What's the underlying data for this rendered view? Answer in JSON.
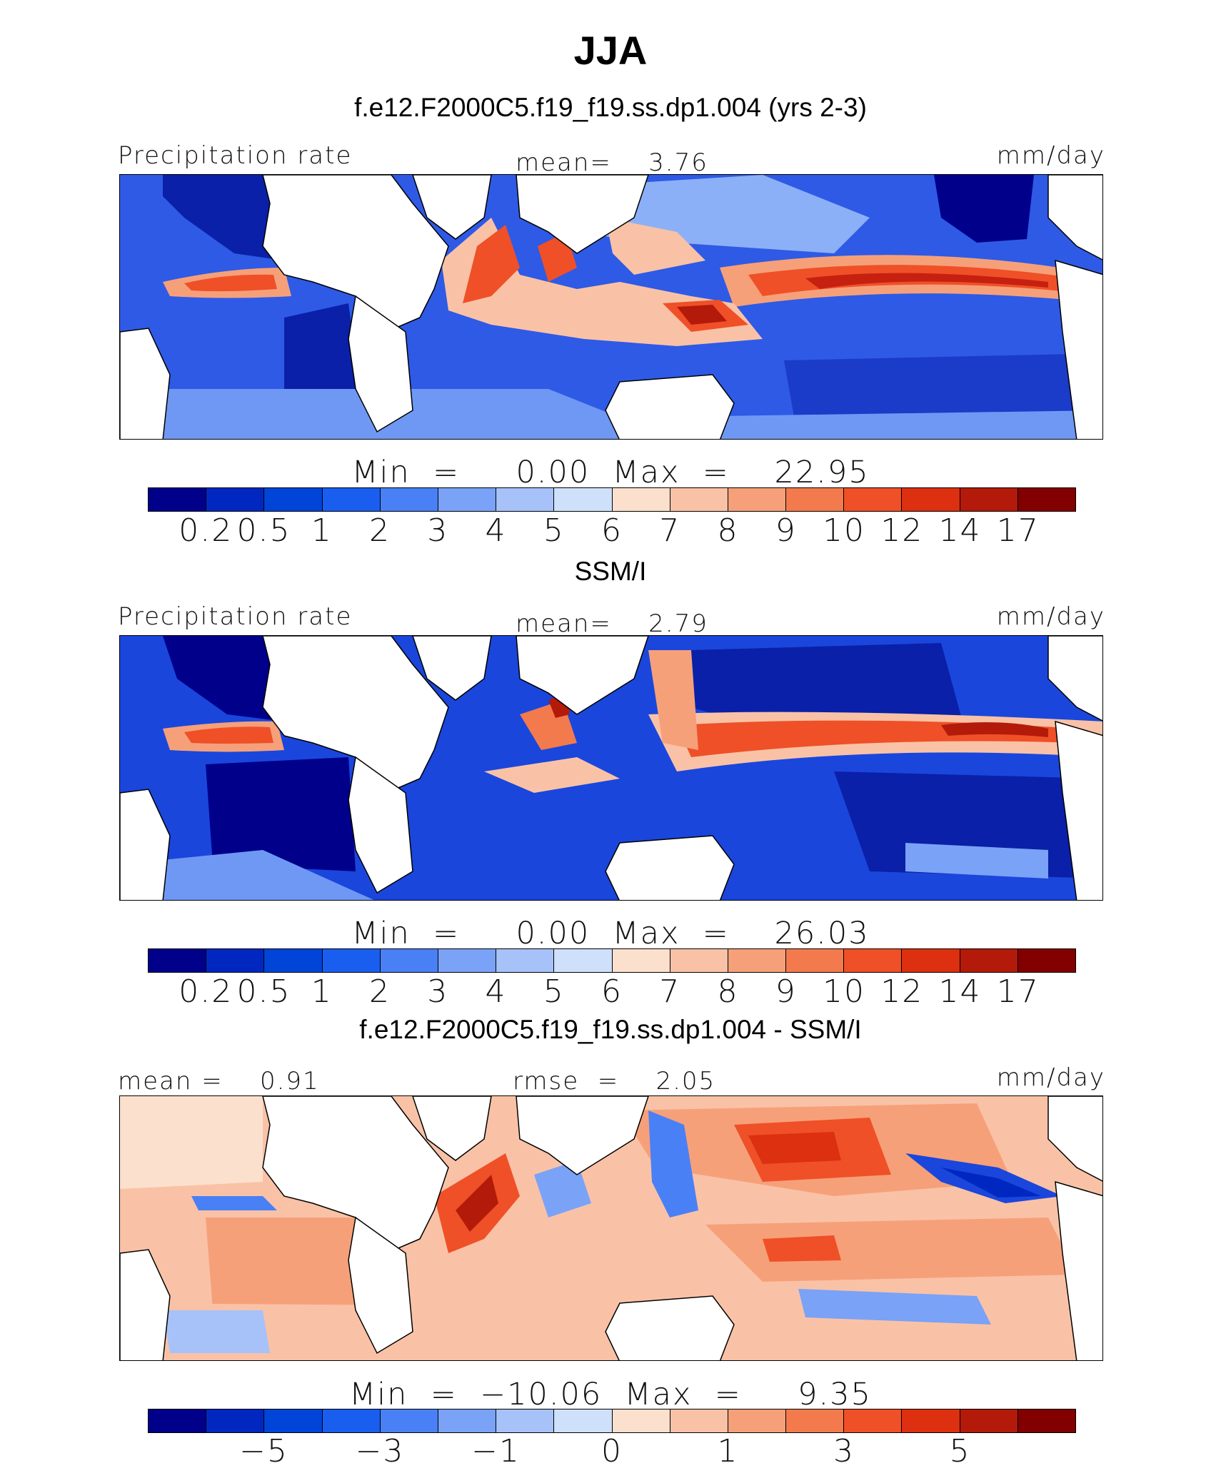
{
  "title": "JJA",
  "panels": [
    {
      "id": "model",
      "subtitle": "f.e12.F2000C5.f19_f19.ss.dp1.004 (yrs 2-3)",
      "left_label": "Precipitation rate",
      "center_label": "mean=    3.76",
      "right_label": "mm/day",
      "minmax": "Min  =     0.00  Max  =    22.95",
      "colorbar": {
        "colors": [
          "#00008b",
          "#0028c0",
          "#0044d8",
          "#1a5ef0",
          "#4a80f5",
          "#7aa2f7",
          "#a6c2f9",
          "#cfe0fb",
          "#fbe0cd",
          "#f9c2a6",
          "#f6a07a",
          "#f37a4d",
          "#ef5027",
          "#dc3010",
          "#b31a0a",
          "#820000"
        ],
        "tick_labels": [
          "0.2",
          "0.5",
          "1",
          "2",
          "3",
          "4",
          "5",
          "6",
          "7",
          "8",
          "9",
          "10",
          "12",
          "14",
          "17"
        ]
      }
    },
    {
      "id": "obs",
      "subtitle": "SSM/I",
      "left_label": "Precipitation rate",
      "center_label": "mean=    2.79",
      "right_label": "mm/day",
      "minmax": "Min  =     0.00  Max  =    26.03",
      "colorbar": {
        "colors": [
          "#00008b",
          "#0028c0",
          "#0044d8",
          "#1a5ef0",
          "#4a80f5",
          "#7aa2f7",
          "#a6c2f9",
          "#cfe0fb",
          "#fbe0cd",
          "#f9c2a6",
          "#f6a07a",
          "#f37a4d",
          "#ef5027",
          "#dc3010",
          "#b31a0a",
          "#820000"
        ],
        "tick_labels": [
          "0.2",
          "0.5",
          "1",
          "2",
          "3",
          "4",
          "5",
          "6",
          "7",
          "8",
          "9",
          "10",
          "12",
          "14",
          "17"
        ]
      }
    },
    {
      "id": "diff",
      "subtitle": "f.e12.F2000C5.f19_f19.ss.dp1.004 - SSM/I",
      "left_label": "mean =    0.91",
      "center_label": "rmse  =    2.05",
      "right_label": "mm/day",
      "minmax": "Min  =  −10.06  Max  =     9.35",
      "colorbar": {
        "colors": [
          "#00008b",
          "#0028c0",
          "#0044d8",
          "#1a5ef0",
          "#4a80f5",
          "#7aa2f7",
          "#a6c2f9",
          "#cfe0fb",
          "#fbe0cd",
          "#f9c2a6",
          "#f6a07a",
          "#f37a4d",
          "#ef5027",
          "#dc3010",
          "#b31a0a",
          "#820000"
        ],
        "tick_labels": [
          "−5",
          "−3",
          "−1",
          "0",
          "1",
          "3",
          "5"
        ]
      }
    }
  ]
}
